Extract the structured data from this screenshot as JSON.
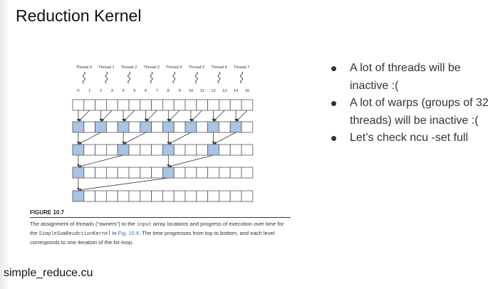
{
  "slide": {
    "title": "Reduction Kernel",
    "file_label": "simple_reduce.cu"
  },
  "figure": {
    "threads": [
      "Thread 0",
      "Thread 1",
      "Thread 2",
      "Thread 3",
      "Thread 4",
      "Thread 5",
      "Thread 6",
      "Thread 7"
    ],
    "indices": [
      "0",
      "1",
      "2",
      "3",
      "4",
      "5",
      "6",
      "7",
      "8",
      "9",
      "10",
      "11",
      "12",
      "13",
      "14",
      "15"
    ],
    "levels": [
      {
        "highlighted": []
      },
      {
        "highlighted": [
          0,
          2,
          4,
          6,
          8,
          10,
          12,
          14
        ]
      },
      {
        "highlighted": [
          0,
          4,
          8,
          12
        ]
      },
      {
        "highlighted": [
          0,
          8
        ]
      },
      {
        "highlighted": [
          0
        ]
      }
    ],
    "colors": {
      "cell_fill": "#a9c4e4",
      "cell_border": "#555555",
      "arrow": "#333333"
    },
    "caption_title": "FIGURE 10.7",
    "caption_part1": "The assignment of threads (“owners”) to the ",
    "caption_code1": "input",
    "caption_part2": " array locations and progress of execution over time for the ",
    "caption_code2": "SimpleSumReudctionKernel",
    "caption_part3": " in ",
    "caption_link": "Fig. 10.6",
    "caption_part4": ". The time progresses from top to bottom, and each level corresponds to one iteration of the for-loop."
  },
  "bullets": [
    "A lot of threads will be inactive :(",
    "A lot of warps (groups of 32 threads) will be inactive :(",
    "Let’s check ncu -set full"
  ]
}
